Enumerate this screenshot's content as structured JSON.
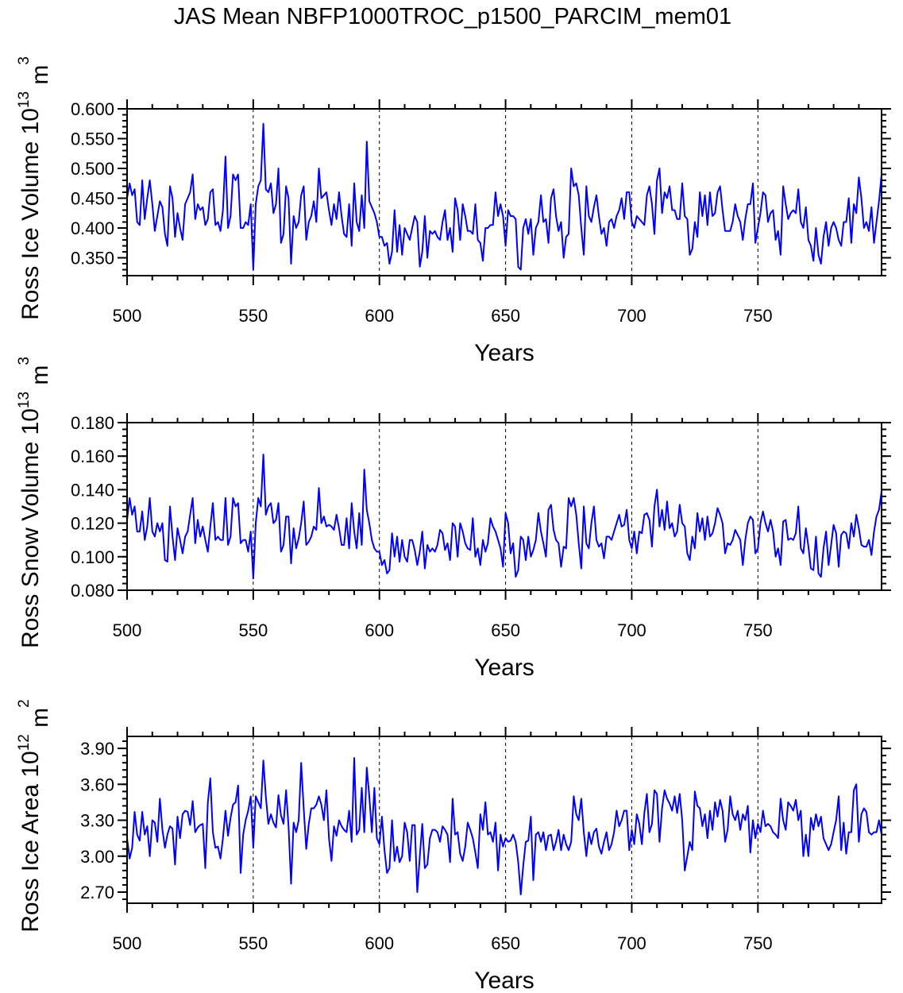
{
  "title": "JAS Mean NBFP1000TROC_p1500_PARCIM_mem01",
  "chart_data": [
    {
      "type": "line",
      "title": "",
      "xlabel": "Years",
      "ylabel": "Ross Ice Volume 10",
      "ylabel_exp": "13",
      "ylabel_unit": " m",
      "ylabel_unit_exp": "3",
      "x_start": 500,
      "x_step": 1,
      "xlim": [
        500,
        799
      ],
      "ylim": [
        0.32,
        0.6
      ],
      "xticks": [
        500,
        550,
        600,
        650,
        700,
        750
      ],
      "xtick_labels": [
        "500",
        "550",
        "600",
        "650",
        "700",
        "750"
      ],
      "yticks": [
        0.6,
        0.55,
        0.5,
        0.45,
        0.4,
        0.35
      ],
      "ytick_labels": [
        "0.600",
        "0.550",
        "0.500",
        "0.450",
        "0.400",
        "0.350"
      ],
      "reference_lines_x": [
        550,
        600,
        650,
        700,
        750
      ],
      "grid": false,
      "line_color": "#0000ff",
      "values": [
        0.45,
        0.475,
        0.455,
        0.465,
        0.41,
        0.405,
        0.48,
        0.415,
        0.45,
        0.48,
        0.44,
        0.395,
        0.42,
        0.445,
        0.435,
        0.39,
        0.37,
        0.47,
        0.45,
        0.385,
        0.425,
        0.4,
        0.38,
        0.44,
        0.45,
        0.46,
        0.49,
        0.415,
        0.44,
        0.43,
        0.435,
        0.405,
        0.415,
        0.46,
        0.465,
        0.405,
        0.41,
        0.395,
        0.43,
        0.52,
        0.4,
        0.42,
        0.49,
        0.48,
        0.49,
        0.4,
        0.4,
        0.41,
        0.405,
        0.44,
        0.33,
        0.44,
        0.47,
        0.48,
        0.575,
        0.465,
        0.46,
        0.475,
        0.425,
        0.44,
        0.5,
        0.375,
        0.39,
        0.47,
        0.45,
        0.34,
        0.42,
        0.4,
        0.41,
        0.455,
        0.47,
        0.38,
        0.41,
        0.42,
        0.445,
        0.41,
        0.5,
        0.45,
        0.455,
        0.46,
        0.43,
        0.405,
        0.44,
        0.415,
        0.46,
        0.42,
        0.39,
        0.385,
        0.44,
        0.37,
        0.475,
        0.41,
        0.395,
        0.455,
        0.4,
        0.545,
        0.445,
        0.435,
        0.425,
        0.41,
        0.385,
        0.385,
        0.37,
        0.375,
        0.34,
        0.36,
        0.43,
        0.36,
        0.405,
        0.355,
        0.4,
        0.39,
        0.38,
        0.4,
        0.42,
        0.41,
        0.335,
        0.36,
        0.42,
        0.35,
        0.395,
        0.39,
        0.395,
        0.385,
        0.38,
        0.41,
        0.43,
        0.38,
        0.4,
        0.36,
        0.45,
        0.43,
        0.38,
        0.44,
        0.42,
        0.395,
        0.395,
        0.39,
        0.44,
        0.38,
        0.375,
        0.345,
        0.4,
        0.4,
        0.405,
        0.405,
        0.46,
        0.42,
        0.44,
        0.42,
        0.37,
        0.43,
        0.42,
        0.42,
        0.415,
        0.335,
        0.33,
        0.4,
        0.415,
        0.39,
        0.415,
        0.355,
        0.4,
        0.41,
        0.455,
        0.41,
        0.415,
        0.375,
        0.45,
        0.465,
        0.42,
        0.395,
        0.41,
        0.35,
        0.385,
        0.39,
        0.5,
        0.47,
        0.475,
        0.455,
        0.4,
        0.355,
        0.47,
        0.42,
        0.41,
        0.435,
        0.455,
        0.42,
        0.39,
        0.4,
        0.37,
        0.41,
        0.415,
        0.4,
        0.42,
        0.43,
        0.45,
        0.415,
        0.46,
        0.46,
        0.41,
        0.4,
        0.42,
        0.415,
        0.41,
        0.405,
        0.455,
        0.47,
        0.44,
        0.39,
        0.48,
        0.5,
        0.425,
        0.46,
        0.45,
        0.47,
        0.43,
        0.43,
        0.415,
        0.415,
        0.475,
        0.42,
        0.415,
        0.355,
        0.365,
        0.41,
        0.385,
        0.46,
        0.42,
        0.455,
        0.405,
        0.46,
        0.42,
        0.425,
        0.46,
        0.47,
        0.43,
        0.395,
        0.395,
        0.395,
        0.41,
        0.44,
        0.42,
        0.41,
        0.38,
        0.415,
        0.44,
        0.44,
        0.475,
        0.375,
        0.4,
        0.425,
        0.46,
        0.455,
        0.41,
        0.425,
        0.43,
        0.38,
        0.395,
        0.355,
        0.47,
        0.44,
        0.415,
        0.425,
        0.43,
        0.425,
        0.465,
        0.41,
        0.4,
        0.435,
        0.38,
        0.37,
        0.345,
        0.4,
        0.355,
        0.34,
        0.385,
        0.41,
        0.37,
        0.4,
        0.41,
        0.4,
        0.38,
        0.37,
        0.41,
        0.41,
        0.45,
        0.375,
        0.44,
        0.425,
        0.485,
        0.45,
        0.4,
        0.41,
        0.395,
        0.435,
        0.375,
        0.41,
        0.445,
        0.49
      ]
    },
    {
      "type": "line",
      "title": "",
      "xlabel": "Years",
      "ylabel": "Ross Snow Volume 10",
      "ylabel_exp": "13",
      "ylabel_unit": " m",
      "ylabel_unit_exp": "3",
      "x_start": 500,
      "x_step": 1,
      "xlim": [
        500,
        799
      ],
      "ylim": [
        0.08,
        0.18
      ],
      "xticks": [
        500,
        550,
        600,
        650,
        700,
        750
      ],
      "xtick_labels": [
        "500",
        "550",
        "600",
        "650",
        "700",
        "750"
      ],
      "yticks": [
        0.18,
        0.16,
        0.14,
        0.12,
        0.1,
        0.08
      ],
      "ytick_labels": [
        "0.180",
        "0.160",
        "0.140",
        "0.120",
        "0.100",
        "0.080"
      ],
      "reference_lines_x": [
        550,
        600,
        650,
        700,
        750
      ],
      "grid": false,
      "line_color": "#0000ff",
      "values": [
        0.122,
        0.135,
        0.125,
        0.13,
        0.115,
        0.115,
        0.127,
        0.11,
        0.118,
        0.135,
        0.115,
        0.112,
        0.12,
        0.115,
        0.12,
        0.098,
        0.097,
        0.13,
        0.112,
        0.098,
        0.117,
        0.11,
        0.102,
        0.112,
        0.115,
        0.125,
        0.135,
        0.108,
        0.122,
        0.112,
        0.118,
        0.11,
        0.103,
        0.118,
        0.132,
        0.11,
        0.112,
        0.11,
        0.11,
        0.135,
        0.107,
        0.112,
        0.135,
        0.13,
        0.132,
        0.108,
        0.11,
        0.11,
        0.103,
        0.115,
        0.087,
        0.12,
        0.135,
        0.13,
        0.161,
        0.125,
        0.13,
        0.132,
        0.12,
        0.122,
        0.132,
        0.103,
        0.107,
        0.124,
        0.124,
        0.096,
        0.117,
        0.105,
        0.111,
        0.12,
        0.133,
        0.107,
        0.109,
        0.112,
        0.118,
        0.116,
        0.141,
        0.12,
        0.124,
        0.118,
        0.119,
        0.118,
        0.116,
        0.125,
        0.117,
        0.107,
        0.107,
        0.123,
        0.105,
        0.132,
        0.115,
        0.105,
        0.126,
        0.107,
        0.152,
        0.128,
        0.12,
        0.11,
        0.105,
        0.103,
        0.103,
        0.095,
        0.098,
        0.09,
        0.092,
        0.114,
        0.1,
        0.112,
        0.097,
        0.11,
        0.1,
        0.097,
        0.11,
        0.11,
        0.104,
        0.095,
        0.103,
        0.115,
        0.093,
        0.107,
        0.103,
        0.105,
        0.103,
        0.107,
        0.116,
        0.114,
        0.104,
        0.108,
        0.098,
        0.12,
        0.118,
        0.1,
        0.12,
        0.115,
        0.108,
        0.105,
        0.104,
        0.123,
        0.1,
        0.105,
        0.095,
        0.11,
        0.103,
        0.108,
        0.123,
        0.118,
        0.115,
        0.11,
        0.105,
        0.094,
        0.126,
        0.12,
        0.102,
        0.108,
        0.088,
        0.092,
        0.112,
        0.11,
        0.098,
        0.112,
        0.1,
        0.104,
        0.11,
        0.126,
        0.115,
        0.108,
        0.1,
        0.128,
        0.131,
        0.116,
        0.11,
        0.108,
        0.094,
        0.106,
        0.105,
        0.135,
        0.13,
        0.135,
        0.125,
        0.108,
        0.093,
        0.13,
        0.108,
        0.105,
        0.12,
        0.13,
        0.11,
        0.106,
        0.108,
        0.099,
        0.112,
        0.112,
        0.11,
        0.115,
        0.12,
        0.125,
        0.118,
        0.119,
        0.128,
        0.11,
        0.105,
        0.115,
        0.102,
        0.115,
        0.114,
        0.125,
        0.126,
        0.122,
        0.106,
        0.13,
        0.14,
        0.118,
        0.128,
        0.116,
        0.133,
        0.117,
        0.12,
        0.112,
        0.115,
        0.131,
        0.12,
        0.118,
        0.102,
        0.098,
        0.112,
        0.105,
        0.126,
        0.115,
        0.123,
        0.11,
        0.124,
        0.112,
        0.114,
        0.12,
        0.129,
        0.125,
        0.12,
        0.102,
        0.108,
        0.107,
        0.11,
        0.116,
        0.113,
        0.11,
        0.095,
        0.11,
        0.12,
        0.124,
        0.122,
        0.102,
        0.105,
        0.12,
        0.127,
        0.12,
        0.115,
        0.122,
        0.115,
        0.1,
        0.105,
        0.095,
        0.121,
        0.122,
        0.11,
        0.111,
        0.11,
        0.114,
        0.13,
        0.105,
        0.102,
        0.117,
        0.106,
        0.093,
        0.092,
        0.112,
        0.09,
        0.088,
        0.105,
        0.115,
        0.095,
        0.107,
        0.119,
        0.114,
        0.094,
        0.113,
        0.115,
        0.114,
        0.105,
        0.12,
        0.112,
        0.125,
        0.117,
        0.107,
        0.106,
        0.106,
        0.11,
        0.101,
        0.115,
        0.124,
        0.128,
        0.139
      ]
    },
    {
      "type": "line",
      "title": "",
      "xlabel": "Years",
      "ylabel": "Ross Ice Area 10",
      "ylabel_exp": "12",
      "ylabel_unit": " m",
      "ylabel_unit_exp": "2",
      "x_start": 500,
      "x_step": 1,
      "xlim": [
        500,
        799
      ],
      "ylim": [
        2.607,
        4.0
      ],
      "xticks": [
        500,
        550,
        600,
        650,
        700,
        750
      ],
      "xtick_labels": [
        "500",
        "550",
        "600",
        "650",
        "700",
        "750"
      ],
      "yticks": [
        3.9,
        3.6,
        3.3,
        3.0,
        2.7
      ],
      "ytick_labels": [
        "3.90",
        "3.60",
        "3.30",
        "3.00",
        "2.70"
      ],
      "reference_lines_x": [
        550,
        600,
        650,
        700,
        750
      ],
      "grid": false,
      "line_color": "#0000ff",
      "values": [
        3.15,
        2.98,
        3.07,
        3.37,
        3.18,
        3.13,
        3.37,
        3.18,
        3.25,
        3.0,
        3.3,
        3.28,
        3.12,
        3.48,
        3.22,
        3.07,
        3.18,
        3.25,
        3.23,
        2.93,
        3.33,
        3.15,
        3.35,
        3.38,
        3.37,
        3.26,
        3.46,
        3.2,
        3.24,
        3.26,
        3.27,
        2.9,
        3.45,
        3.65,
        3.2,
        3.07,
        3.08,
        2.98,
        3.15,
        3.38,
        3.17,
        3.32,
        3.43,
        3.45,
        3.59,
        2.86,
        3.18,
        3.3,
        3.38,
        3.5,
        3.07,
        3.5,
        3.45,
        3.4,
        3.8,
        3.5,
        3.27,
        3.35,
        3.28,
        3.24,
        3.51,
        3.34,
        3.27,
        3.55,
        3.25,
        2.77,
        3.28,
        3.2,
        3.3,
        3.78,
        3.4,
        3.06,
        3.27,
        3.4,
        3.4,
        3.43,
        3.5,
        3.43,
        3.3,
        3.55,
        3.15,
        2.96,
        3.25,
        3.17,
        3.3,
        3.25,
        3.22,
        3.2,
        3.38,
        3.12,
        3.82,
        3.18,
        3.22,
        3.57,
        3.2,
        3.74,
        3.5,
        3.2,
        3.57,
        3.15,
        3.1,
        3.33,
        3.05,
        2.86,
        2.9,
        3.3,
        2.96,
        3.08,
        2.95,
        3.0,
        3.28,
        3.2,
        2.96,
        3.26,
        3.26,
        2.7,
        3.0,
        3.27,
        2.9,
        2.93,
        3.15,
        3.22,
        3.22,
        3.2,
        3.12,
        3.25,
        3.22,
        3.18,
        2.95,
        3.48,
        3.18,
        3.2,
        3.02,
        2.96,
        3.08,
        3.28,
        3.22,
        3.15,
        3.03,
        2.9,
        3.35,
        3.22,
        3.45,
        3.18,
        3.2,
        3.12,
        3.28,
        2.88,
        3.18,
        3.08,
        3.15,
        3.12,
        3.13,
        3.18,
        3.12,
        2.95,
        2.68,
        2.92,
        3.12,
        3.13,
        3.33,
        2.8,
        3.18,
        3.2,
        3.12,
        3.2,
        3.05,
        3.17,
        3.18,
        3.05,
        3.12,
        3.22,
        3.05,
        3.18,
        3.1,
        3.05,
        3.12,
        3.5,
        3.35,
        3.3,
        3.48,
        3.2,
        3.0,
        3.2,
        3.1,
        3.2,
        3.23,
        3.08,
        3.02,
        3.12,
        3.2,
        3.05,
        3.1,
        3.2,
        3.38,
        3.25,
        3.3,
        3.38,
        3.38,
        3.05,
        3.22,
        3.1,
        3.35,
        3.27,
        3.1,
        3.36,
        3.52,
        3.2,
        3.27,
        3.55,
        3.52,
        3.12,
        3.4,
        3.55,
        3.48,
        3.44,
        3.38,
        3.5,
        3.36,
        3.52,
        3.3,
        2.88,
        3.0,
        3.12,
        3.05,
        3.54,
        3.42,
        3.4,
        3.25,
        3.35,
        3.15,
        3.38,
        3.22,
        3.45,
        3.33,
        3.47,
        3.38,
        3.12,
        3.22,
        3.5,
        3.35,
        3.3,
        3.38,
        3.22,
        3.35,
        3.3,
        3.42,
        3.03,
        3.3,
        3.15,
        3.27,
        3.2,
        3.38,
        3.25,
        3.27,
        3.25,
        3.2,
        3.18,
        3.15,
        3.48,
        3.3,
        3.22,
        3.45,
        3.42,
        3.38,
        3.47,
        3.3,
        3.38,
        3.0,
        3.18,
        3.0,
        3.32,
        3.22,
        3.35,
        3.25,
        3.33,
        3.15,
        3.1,
        3.05,
        3.1,
        3.2,
        3.3,
        3.5,
        3.05,
        3.28,
        3.02,
        3.2,
        3.2,
        3.55,
        3.6,
        3.12,
        3.35,
        3.4,
        3.37,
        3.2,
        3.18,
        3.2,
        3.2,
        3.3,
        3.18
      ]
    }
  ]
}
